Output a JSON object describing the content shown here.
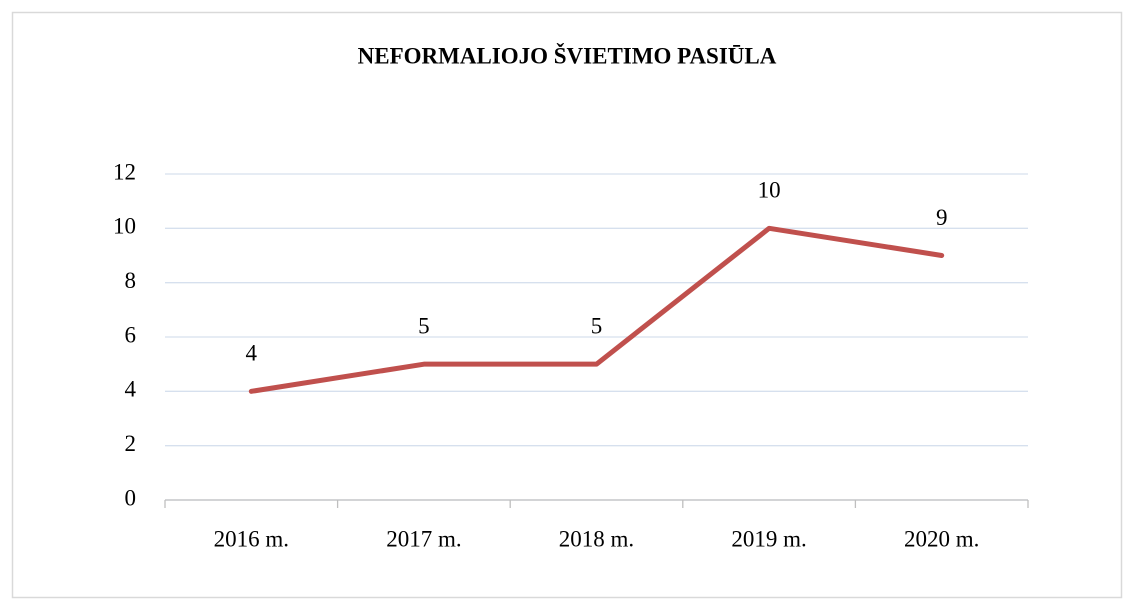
{
  "chart_data": {
    "type": "line",
    "title": "NEFORMALIOJO ŠVIETIMO PASIŪLA",
    "categories": [
      "2016 m.",
      "2017 m.",
      "2018 m.",
      "2019 m.",
      "2020 m."
    ],
    "values": [
      4,
      5,
      5,
      10,
      9
    ],
    "color": "#c0504d",
    "ylim": [
      0,
      12
    ],
    "yticks": [
      0,
      2,
      4,
      6,
      8,
      10,
      12
    ],
    "grid": true
  }
}
